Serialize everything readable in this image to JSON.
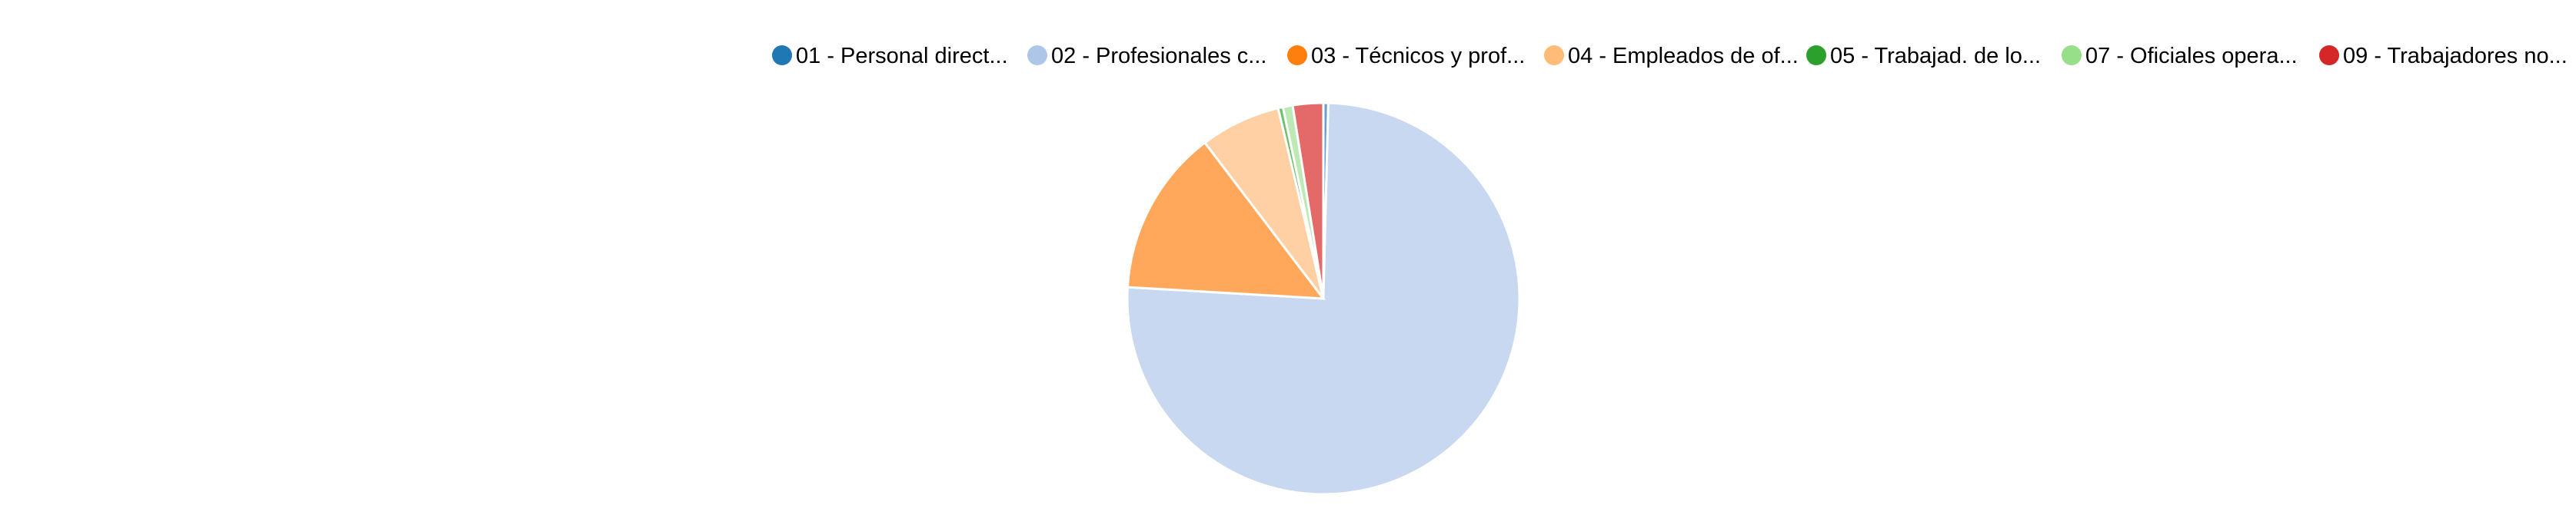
{
  "chart_data": {
    "type": "pie",
    "title": "",
    "legend_position": "top-right",
    "categories": [
      "01 - Personal direct...",
      "02 - Profesionales c...",
      "03 - Técnicos y prof...",
      "04 - Empleados de of...",
      "05 - Trabajad. de lo...",
      "07 - Oficiales opera...",
      "09 - Trabajadores no..."
    ],
    "values": [
      0.4,
      75.3,
      13.7,
      6.6,
      0.4,
      0.8,
      2.5
    ],
    "legend_colors": [
      "#1f77b4",
      "#aec7e8",
      "#ff7f0e",
      "#ffbb78",
      "#2ca02c",
      "#98df8a",
      "#d62728"
    ],
    "slice_colors": [
      "#6aa0ce",
      "#c8d8f0",
      "#ffa75a",
      "#ffd0a4",
      "#6cc26a",
      "#bde9b4",
      "#e46a6a"
    ]
  }
}
